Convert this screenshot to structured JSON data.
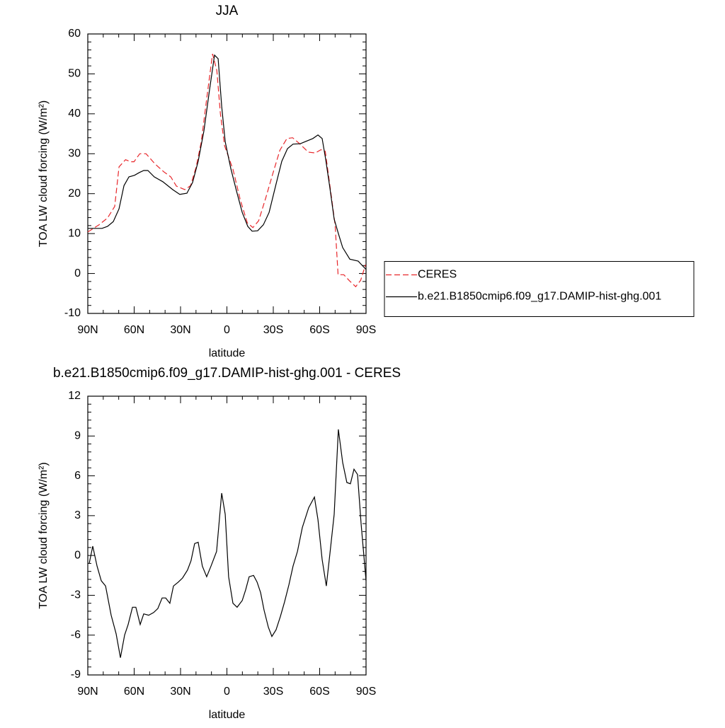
{
  "chart_data": [
    {
      "type": "line",
      "title": "JJA",
      "x_label": "latitude",
      "y_label": "TOA LW cloud forcing (W/m²)",
      "xlim": [
        90,
        -90
      ],
      "xticks": [
        {
          "value": 90,
          "label": "90N"
        },
        {
          "value": 60,
          "label": "60N"
        },
        {
          "value": 30,
          "label": "30N"
        },
        0,
        {
          "value": -30,
          "label": "30S"
        },
        {
          "value": -60,
          "label": "60S"
        },
        {
          "value": -90,
          "label": "90S"
        }
      ],
      "ylim": [
        -10,
        60
      ],
      "yticks": [
        -10,
        0,
        10,
        20,
        30,
        40,
        50,
        60
      ],
      "legend": "right",
      "series": [
        {
          "name": "CERES",
          "color": "#e8262a",
          "dash": "dashed",
          "x": [
            90,
            82.7,
            77.2,
            72.6,
            69.8,
            65.6,
            62.4,
            60.1,
            56.4,
            52.3,
            46.4,
            40.9,
            36.3,
            32.7,
            27.2,
            23.5,
            19.9,
            16.6,
            13,
            9.3,
            6.5,
            4.2,
            1.5,
            -4,
            -8.6,
            -13.2,
            -16.8,
            -20.5,
            -25.1,
            -29.7,
            -34.3,
            -38.8,
            -42.5,
            -47.1,
            -52.6,
            -57.2,
            -60.8,
            -63.6,
            -67.3,
            -70,
            -71.9,
            -75.6,
            -79.2,
            -83.3,
            -86.5,
            -89.7
          ],
          "values": [
            10.4,
            12.2,
            13.9,
            16.8,
            26.7,
            28.5,
            28,
            28,
            30,
            30,
            27.4,
            25.5,
            24.2,
            21.9,
            21,
            22,
            26.7,
            33,
            44,
            55,
            50.8,
            40,
            32,
            26,
            18.5,
            12.7,
            11.5,
            13.2,
            18.9,
            25,
            30.9,
            33.8,
            34,
            32.5,
            30.4,
            30.2,
            31,
            30.6,
            20.1,
            12.2,
            -0.3,
            -0.3,
            -1.8,
            -3.3,
            -1.7,
            2.2
          ]
        },
        {
          "name": "b.e21.B1850cmip6.f09_g17.DAMIP-hist-ghg.001",
          "color": "#000000",
          "dash": "solid",
          "x": [
            90,
            80.8,
            77.2,
            73.5,
            69.8,
            66.6,
            63.4,
            59.8,
            56.6,
            53.8,
            51.1,
            47,
            41.5,
            35,
            30.5,
            25.9,
            22.2,
            18.6,
            14.9,
            11.3,
            8,
            5.7,
            3.4,
            1.1,
            -2.5,
            -6.2,
            -9.9,
            -13.5,
            -16.3,
            -19.9,
            -23.6,
            -27.3,
            -31.8,
            -35.5,
            -39.2,
            -42.8,
            -47.4,
            -51.1,
            -55.6,
            -58.9,
            -61.6,
            -63.9,
            -66.6,
            -69.4,
            -72.1,
            -74.9,
            -79.5,
            -84.9,
            -90
          ],
          "values": [
            11.3,
            11.3,
            11.8,
            13,
            16.2,
            22,
            24.2,
            24.6,
            25.3,
            25.8,
            25.8,
            24.2,
            23,
            21,
            19.8,
            20.1,
            22.8,
            28.1,
            35.7,
            45.8,
            54.7,
            53.8,
            41.9,
            33,
            26.3,
            20.7,
            15.3,
            11.8,
            10.6,
            10.7,
            12.2,
            15.3,
            22.4,
            28.1,
            31.3,
            32.4,
            32.5,
            33.1,
            33.8,
            34.7,
            33.8,
            28.6,
            21.5,
            13.6,
            10,
            6.5,
            3.6,
            3.1,
            1
          ]
        }
      ]
    },
    {
      "type": "line",
      "title": "b.e21.B1850cmip6.f09_g17.DAMIP-hist-ghg.001 - CERES",
      "x_label": "latitude",
      "y_label": "TOA LW cloud forcing (W/m²)",
      "xlim": [
        90,
        -90
      ],
      "xticks": [
        {
          "value": 90,
          "label": "90N"
        },
        {
          "value": 60,
          "label": "60N"
        },
        {
          "value": 30,
          "label": "30N"
        },
        0,
        {
          "value": -30,
          "label": "30S"
        },
        {
          "value": -60,
          "label": "60S"
        },
        {
          "value": -90,
          "label": "90S"
        }
      ],
      "ylim": [
        -9,
        12
      ],
      "yticks": [
        -9,
        -6,
        -3,
        0,
        3,
        6,
        9,
        12
      ],
      "series": [
        {
          "color": "#000000",
          "dash": "solid",
          "x": [
            89.1,
            86.8,
            84,
            81.3,
            78.5,
            74.9,
            71.7,
            68.9,
            66.2,
            63.9,
            61.1,
            58.9,
            56.1,
            53.8,
            50.6,
            47.4,
            44.7,
            41.9,
            39.6,
            36.9,
            34.6,
            31.4,
            28.7,
            25.5,
            23.2,
            20.9,
            18.6,
            15.9,
            13.1,
            10.3,
            6.7,
            3.4,
            1.1,
            -1.1,
            -3.9,
            -6.6,
            -9.9,
            -12.1,
            -14.4,
            -17.2,
            -19.5,
            -21.8,
            -24,
            -26.8,
            -29.1,
            -31.8,
            -34.6,
            -37.3,
            -40.1,
            -42.8,
            -45.6,
            -48.8,
            -52.9,
            -56.6,
            -58.9,
            -61.6,
            -64.3,
            -66.6,
            -69.4,
            -72.1,
            -74.9,
            -77.6,
            -79.9,
            -82.2,
            -84.5,
            -86.8,
            -90
          ],
          "values": [
            -0.6,
            0.7,
            -0.8,
            -1.9,
            -2.3,
            -4.5,
            -5.9,
            -7.7,
            -6,
            -5.2,
            -3.9,
            -3.9,
            -5.2,
            -4.4,
            -4.5,
            -4.3,
            -4,
            -3.2,
            -3.2,
            -3.6,
            -2.3,
            -2,
            -1.7,
            -1.1,
            -0.4,
            0.9,
            1,
            -0.8,
            -1.6,
            -0.8,
            0.3,
            4.7,
            3.1,
            -1.6,
            -3.6,
            -3.9,
            -3.4,
            -2.6,
            -1.6,
            -1.5,
            -2,
            -2.8,
            -4.1,
            -5.4,
            -6.1,
            -5.6,
            -4.6,
            -3.5,
            -2.2,
            -0.8,
            0.3,
            2.1,
            3.6,
            4.4,
            2.7,
            -0.3,
            -2.3,
            0.1,
            3.1,
            9.5,
            7,
            5.5,
            5.4,
            6.5,
            6.1,
            2.4,
            -1.9
          ]
        }
      ]
    }
  ]
}
